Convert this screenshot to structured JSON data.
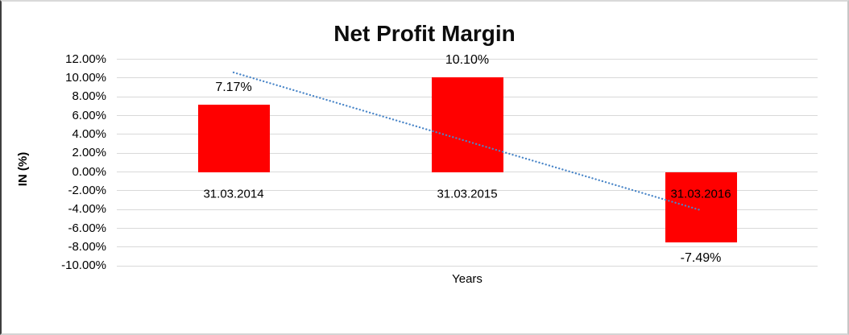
{
  "chart_data": {
    "type": "bar",
    "title": "Net Profit Margin",
    "xlabel": "Years",
    "ylabel": "IN (%)",
    "categories": [
      "31.03.2014",
      "31.03.2015",
      "31.03.2016"
    ],
    "values": [
      7.17,
      10.1,
      -7.49
    ],
    "value_labels": [
      "7.17%",
      "10.10%",
      "-7.49%"
    ],
    "ylim": [
      -10,
      12
    ],
    "ytick_step": 2,
    "ytick_labels": [
      "12.00%",
      "10.00%",
      "8.00%",
      "6.00%",
      "4.00%",
      "2.00%",
      "0.00%",
      "-2.00%",
      "-4.00%",
      "-6.00%",
      "-8.00%",
      "-10.00%"
    ],
    "ytick_values": [
      12,
      10,
      8,
      6,
      4,
      2,
      0,
      -2,
      -4,
      -6,
      -8,
      -10
    ],
    "grid": true,
    "legend": "none",
    "bar_color": "#FF0000",
    "gridline_color": "#D9D9D9",
    "trendline": {
      "type": "linear",
      "style": "dotted",
      "color": "#4A86C8",
      "start_value": 10.59,
      "end_value": -4.07
    }
  }
}
